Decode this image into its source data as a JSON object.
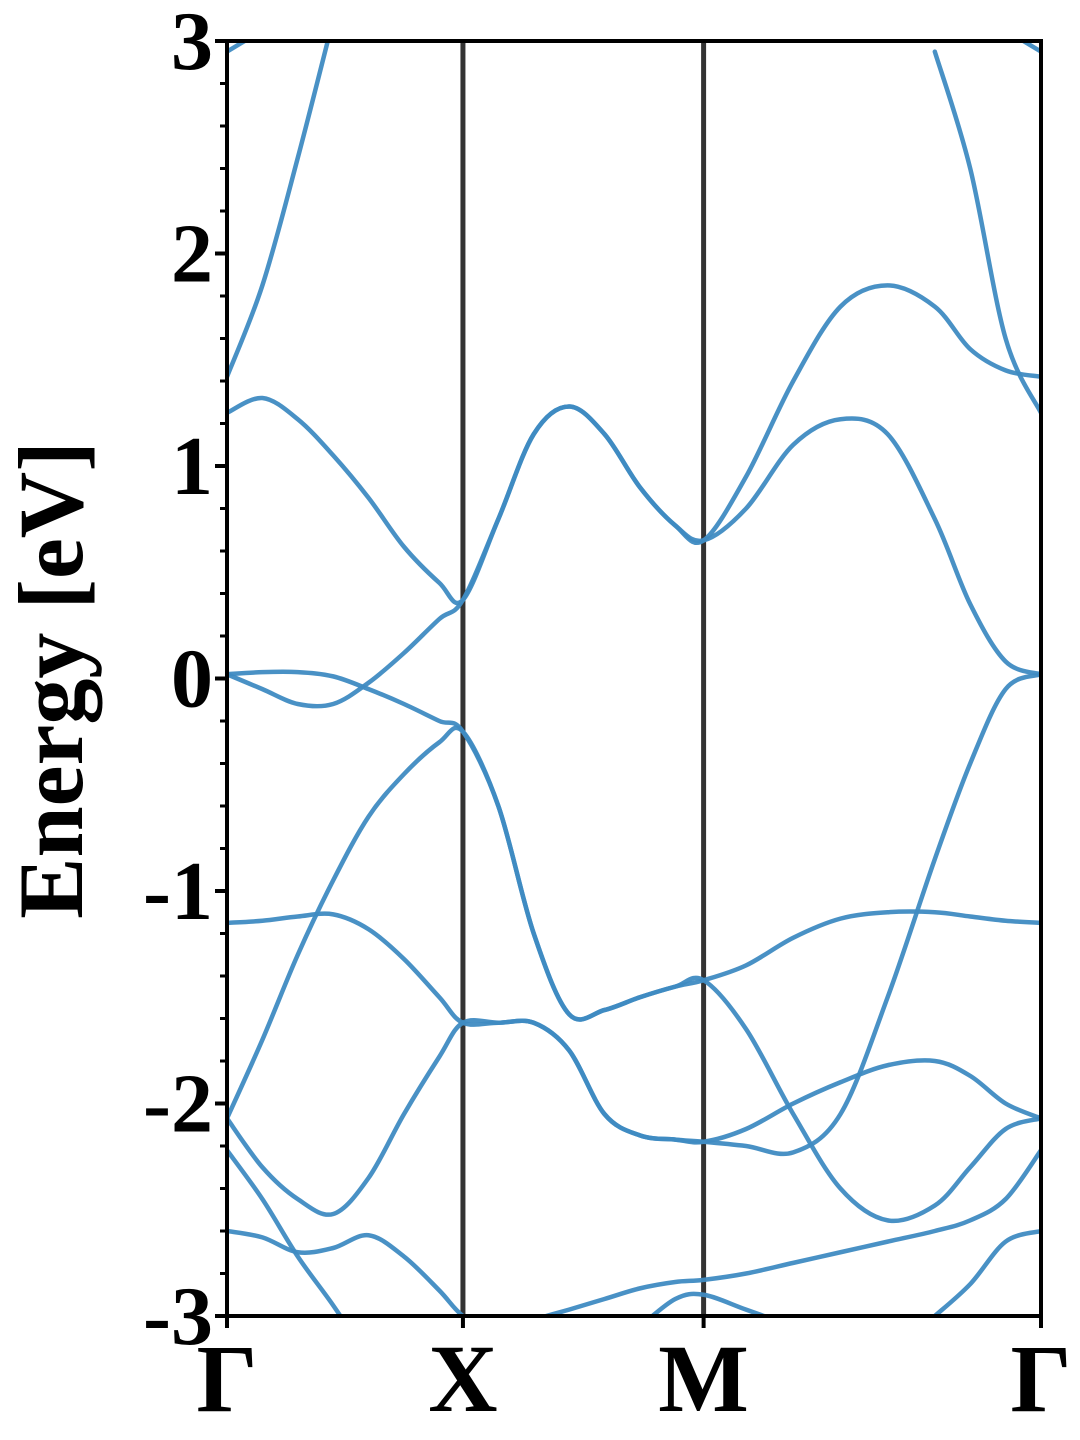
{
  "chart_data": {
    "type": "line",
    "ylabel": "Energy [eV]",
    "color": "#3f8bc2",
    "vlines_at_ticks": true,
    "xlim": [
      0,
      3.45
    ],
    "xticks": [
      {
        "value": 0,
        "label": "Γ"
      },
      {
        "value": 1.0,
        "label": "X"
      },
      {
        "value": 2.02,
        "label": "M"
      },
      {
        "value": 3.45,
        "label": "Γ"
      }
    ],
    "ylim": [
      -3,
      3
    ],
    "yticks": [
      -3,
      -2,
      -1,
      0,
      1,
      2,
      3
    ],
    "yminorticks": [
      -2.8,
      -2.6,
      -2.4,
      -2.2,
      -1.8,
      -1.6,
      -1.4,
      -1.2,
      -0.8,
      -0.6,
      -0.4,
      -0.2,
      0.2,
      0.4,
      0.6,
      0.8,
      1.2,
      1.4,
      1.6,
      1.8,
      2.2,
      2.4,
      2.6,
      2.8
    ],
    "x": [
      0,
      0.15,
      0.3,
      0.45,
      0.6,
      0.75,
      0.9,
      1.0,
      1.15,
      1.3,
      1.45,
      1.6,
      1.75,
      1.9,
      2.02,
      2.2,
      2.4,
      2.6,
      2.8,
      3.0,
      3.15,
      3.3,
      3.45
    ],
    "series": [
      {
        "values": [
          2.95,
          3.05,
          null,
          null,
          null,
          null,
          null,
          null,
          null,
          null,
          null,
          null,
          null,
          null,
          null,
          null,
          null,
          null,
          null,
          null,
          null,
          3.05,
          2.95
        ]
      },
      {
        "values": [
          1.42,
          1.85,
          2.45,
          3.1,
          null,
          null,
          null,
          null,
          null,
          null,
          null,
          null,
          null,
          null,
          null,
          null,
          null,
          null,
          null,
          2.95,
          2.4,
          1.6,
          1.25
        ]
      },
      {
        "values": [
          1.25,
          1.32,
          1.22,
          1.05,
          0.85,
          0.62,
          0.45,
          0.37,
          0.75,
          1.15,
          1.28,
          1.15,
          0.9,
          0.72,
          0.65,
          0.8,
          1.1,
          1.22,
          1.15,
          0.75,
          0.35,
          0.08,
          0.02
        ]
      },
      {
        "values": [
          0.02,
          -0.05,
          -0.12,
          -0.12,
          -0.02,
          0.12,
          0.28,
          0.37,
          0.75,
          1.15,
          1.28,
          1.15,
          0.9,
          0.72,
          0.65,
          0.95,
          1.4,
          1.75,
          1.85,
          1.75,
          1.55,
          1.45,
          1.42
        ]
      },
      {
        "values": [
          0.02,
          0.03,
          0.03,
          0.01,
          -0.05,
          -0.12,
          -0.2,
          -0.25,
          -0.6,
          -1.2,
          -1.58,
          -1.56,
          -1.5,
          -1.45,
          -1.42,
          -1.35,
          -1.22,
          -1.13,
          -1.1,
          -1.1,
          -1.12,
          -1.14,
          -1.15
        ]
      },
      {
        "values": [
          -2.07,
          -1.7,
          -1.3,
          -0.95,
          -0.65,
          -0.45,
          -0.3,
          -0.25,
          -0.6,
          -1.2,
          -1.58,
          -1.56,
          -1.5,
          -1.45,
          -1.42,
          -1.65,
          -2.05,
          -2.4,
          -2.55,
          -2.48,
          -2.3,
          -2.12,
          -2.07
        ]
      },
      {
        "values": [
          -1.15,
          -1.14,
          -1.12,
          -1.11,
          -1.18,
          -1.32,
          -1.5,
          -1.62,
          -1.62,
          -1.62,
          -1.75,
          -2.05,
          -2.15,
          -2.17,
          -2.18,
          -2.12,
          -2.0,
          -1.9,
          -1.82,
          -1.8,
          -1.87,
          -2.0,
          -2.07
        ]
      },
      {
        "values": [
          -2.07,
          -2.3,
          -2.45,
          -2.52,
          -2.35,
          -2.05,
          -1.78,
          -1.62,
          -1.62,
          -1.62,
          -1.75,
          -2.05,
          -2.15,
          -2.17,
          -2.18,
          -2.2,
          -2.23,
          -2.05,
          -1.5,
          -0.85,
          -0.4,
          -0.05,
          0.02
        ]
      },
      {
        "values": [
          -2.22,
          -2.45,
          -2.72,
          -2.95,
          -3.2,
          null,
          null,
          null,
          null,
          null,
          null,
          null,
          null,
          null,
          null,
          null,
          null,
          null,
          null,
          -3.0,
          -2.85,
          -2.65,
          -2.6
        ]
      },
      {
        "values": [
          -2.6,
          -2.63,
          -2.7,
          -2.68,
          -2.62,
          -2.72,
          -2.88,
          -3.0,
          -3.1,
          -3.02,
          -2.97,
          -2.92,
          -2.87,
          -2.84,
          -2.83,
          -2.8,
          -2.75,
          -2.7,
          -2.65,
          -2.6,
          -2.55,
          -2.45,
          -2.22
        ]
      },
      {
        "values": [
          null,
          null,
          null,
          null,
          null,
          null,
          null,
          null,
          null,
          null,
          null,
          null,
          -3.05,
          -2.92,
          -2.9,
          -2.97,
          -3.05,
          null,
          null,
          null,
          null,
          null,
          null
        ]
      }
    ]
  }
}
